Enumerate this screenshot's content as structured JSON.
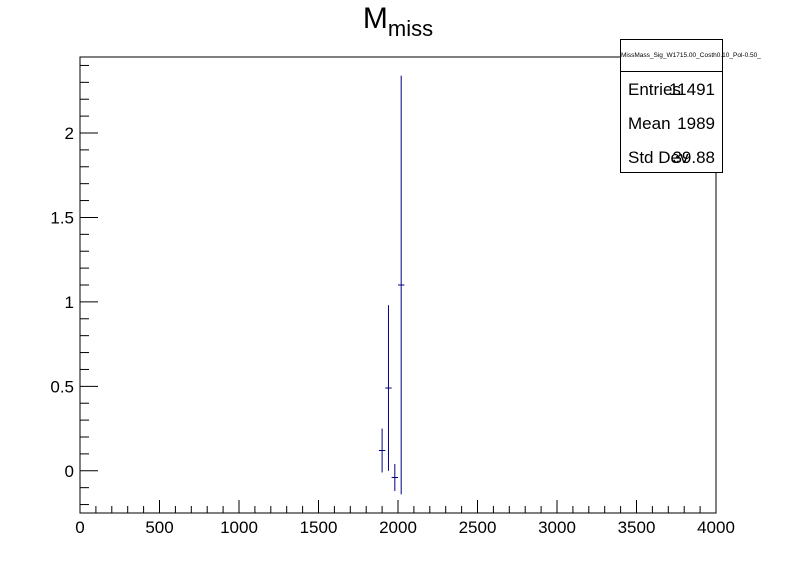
{
  "chart_data": {
    "type": "scatter",
    "title_main": "M",
    "title_sub": "miss",
    "xlim": [
      0,
      4000
    ],
    "ylim": [
      -0.25,
      2.45
    ],
    "x_ticks": [
      0,
      500,
      1000,
      1500,
      2000,
      2500,
      3000,
      3500,
      4000
    ],
    "y_ticks": [
      0,
      0.5,
      1,
      1.5,
      2
    ],
    "x_tick_labels": [
      "0",
      "500",
      "1000",
      "1500",
      "2000",
      "2500",
      "3000",
      "3500",
      "4000"
    ],
    "y_tick_labels": [
      "0",
      "0.5",
      "1",
      "1.5",
      "2"
    ],
    "line_color": "#000080",
    "points": [
      {
        "x": 1900,
        "y": 0.12,
        "xerr": 20,
        "yerr": 0.13
      },
      {
        "x": 1940,
        "y": 0.49,
        "xerr": 20,
        "yerr": 0.49
      },
      {
        "x": 1980,
        "y": -0.04,
        "xerr": 20,
        "yerr": 0.08
      },
      {
        "x": 2020,
        "y": 1.1,
        "xerr": 20,
        "yerr": 1.24
      }
    ]
  },
  "stats_box": {
    "name": "MissMass_Sig_W1715.00_Costh0.10_Pol-0.50_",
    "entries_label": "Entries",
    "entries_value": "11491",
    "mean_label": "Mean",
    "mean_value": "1989",
    "stddev_label": "Std Dev",
    "stddev_value": "39.88"
  }
}
